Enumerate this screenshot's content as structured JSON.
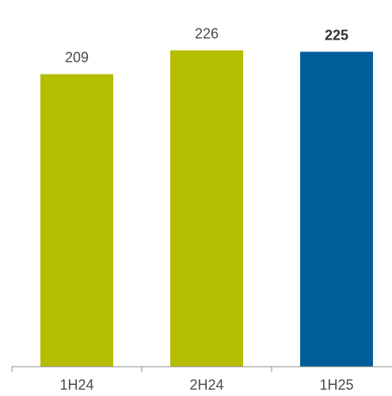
{
  "chart_data": {
    "type": "bar",
    "categories": [
      "1H24",
      "2H24",
      "1H25"
    ],
    "values": [
      209,
      226,
      225
    ],
    "data_labels": [
      "209",
      "226",
      "225"
    ],
    "highlight_index": 2,
    "colors": [
      "#b5bd00",
      "#b5bd00",
      "#005f99"
    ],
    "axis_color": "#8c8c8c",
    "ylim": [
      0,
      245
    ],
    "grid": false,
    "legend": "none"
  }
}
